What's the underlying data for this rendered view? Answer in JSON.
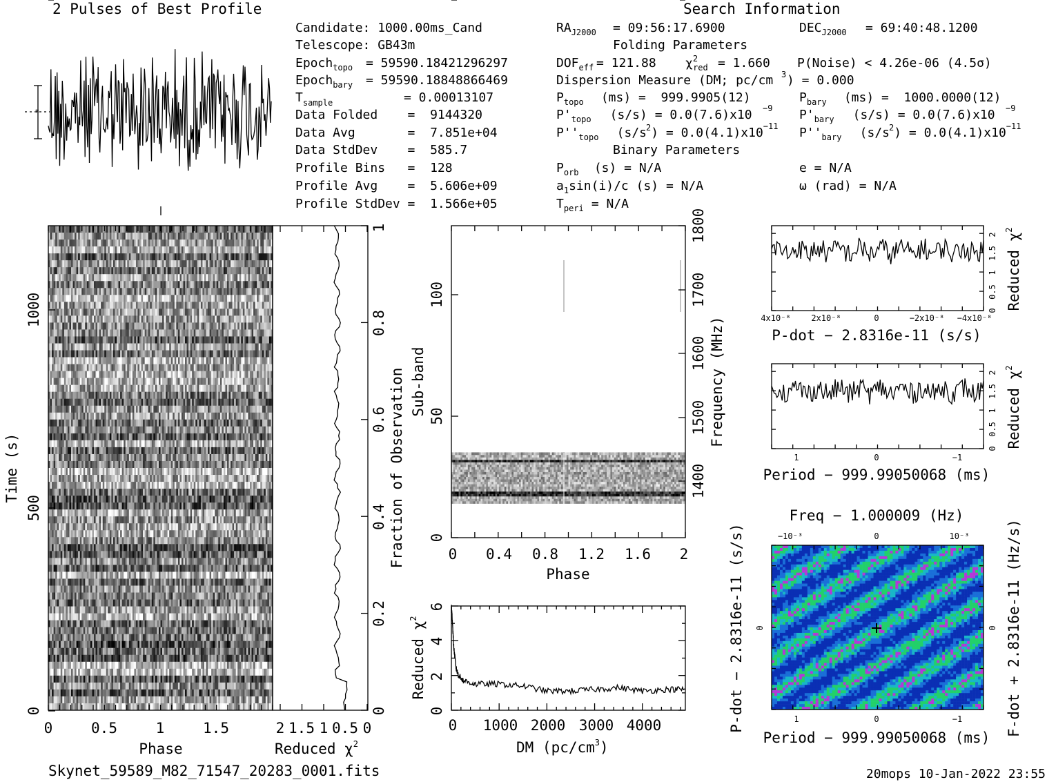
{
  "header": {
    "profile_title": "2 Pulses of Best Profile",
    "search_title": "Search Information",
    "folding_title": "Folding Parameters",
    "binary_title": "Binary Parameters",
    "filename": "Skynet_59589_M82_71547_20283_0001.fits",
    "footer": "20mops 10-Jan-2022 23:55"
  },
  "info": {
    "candidate": "Candidate:  1000.00ms_Cand",
    "telescope": "Telescope:  GB43m",
    "epoch_topo": "= 59590.18421296297",
    "epoch_bary": "= 59590.18848866469",
    "t_sample": "=  0.00013107",
    "data_folded": "Data Folded    =  9144320",
    "data_avg": "Data Avg       =  7.851e+04",
    "data_stddev": "Data StdDev    =  585.7",
    "profile_bins": "Profile Bins   =  128",
    "profile_avg": "Profile Avg    =  5.606e+09",
    "profile_stddev": "Profile StdDev =  1.566e+05"
  },
  "search": {
    "ra": "= 09:56:17.6900",
    "dec": "= 69:40:48.1200",
    "dof": "= 121.88",
    "chi2red": "= 1.660",
    "pnoise": "P(Noise) < 4.26e-06  (4.5σ)",
    "dm": "Dispersion Measure (DM; pc/cm",
    "dm_val": ") = 0.000",
    "ptopo": " (ms) =  999.9905(12)",
    "pbary": " (ms) =  1000.0000(12)",
    "pdtopo": "  (s/s) = 0.0(7.6)x10",
    "pdbary": "  (s/s) = 0.0(7.6)x10",
    "pddtopo": "  (s/s",
    "pddbary": "  (s/s",
    "porb": " (s) = N/A",
    "asini": "a",
    "asini_rest": "sin(i)/c (s) = N/A",
    "tperi": " = N/A",
    "ecc": "e = N/A",
    "omega": "ω (rad) = N/A"
  },
  "chart_data": [
    {
      "type": "line",
      "name": "pulse-profile",
      "title": "2 Pulses of Best Profile",
      "xlabel": "",
      "ylabel": "",
      "note": "noise-like profile, two pulses of 128 bins"
    },
    {
      "type": "heatmap",
      "name": "time-phase",
      "xlabel": "Phase",
      "ylabel": "Time (s)",
      "xlim": [
        0,
        2
      ],
      "ylim": [
        0,
        1150
      ],
      "xticks": [
        "0",
        "0.5",
        "1",
        "1.5",
        "2"
      ],
      "yticks": [
        "0",
        "500",
        "1000"
      ],
      "colormap": "grayscale"
    },
    {
      "type": "line",
      "name": "chi2-vs-time",
      "xlabel": "Reduced χ²",
      "y2label": "Fraction of Observation",
      "xticks": [
        "2",
        "1.5",
        "1",
        "0.5",
        "0"
      ],
      "y2ticks": [
        "0",
        "0.2",
        "0.4",
        "0.6",
        "0.8",
        "1"
      ]
    },
    {
      "type": "heatmap",
      "name": "subband-phase",
      "xlabel": "Phase",
      "ylabel": "Sub-band",
      "y2label": "Frequency (MHz)",
      "xlim": [
        0,
        2
      ],
      "ylim": [
        0,
        128
      ],
      "xticks": [
        "0",
        "0.4",
        "0.8",
        "1.2",
        "1.6",
        "2"
      ],
      "yticks": [
        "0",
        "50",
        "100"
      ],
      "y2ticks": [
        "1400",
        "1500",
        "1600",
        "1700",
        "1800"
      ],
      "active_subbands": [
        14,
        35
      ]
    },
    {
      "type": "line",
      "name": "dm-curve",
      "xlabel": "DM (pc/cm³)",
      "ylabel": "Reduced χ²",
      "xlim": [
        0,
        4900
      ],
      "ylim": [
        0,
        6
      ],
      "x": [
        0,
        20,
        50,
        100,
        150,
        250,
        500,
        1000,
        1500,
        2000,
        2500,
        3000,
        3500,
        4000,
        4500,
        4900
      ],
      "y": [
        6.0,
        5.2,
        3.6,
        2.4,
        2.0,
        1.7,
        1.5,
        1.5,
        1.4,
        1.1,
        1.1,
        1.2,
        1.3,
        1.1,
        1.2,
        1.2
      ],
      "xticks": [
        "0",
        "1000",
        "2000",
        "3000",
        "4000"
      ],
      "yticks": [
        "0",
        "2",
        "4",
        "6"
      ]
    },
    {
      "type": "line",
      "name": "pdot-curve",
      "xlabel": "P-dot − 2.8316e-11 (s/s)",
      "ylabel": "Reduced χ²",
      "ylim": [
        0,
        2.2
      ],
      "xticks": [
        "4x10⁻⁸",
        "2x10⁻⁸",
        "0",
        "−2x10⁻⁸",
        "−4x10⁻⁸"
      ],
      "yticks": [
        "0",
        "0.5",
        "1",
        "1.5",
        "2"
      ],
      "mean": 1.55
    },
    {
      "type": "line",
      "name": "period-curve",
      "xlabel": "Period − 999.99050068 (ms)",
      "ylabel": "Reduced χ²",
      "ylim": [
        0,
        2.2
      ],
      "xticks": [
        "1",
        "0",
        "−1"
      ],
      "yticks": [
        "0",
        "0.5",
        "1",
        "1.5",
        "2"
      ],
      "mean": 1.5
    },
    {
      "type": "heatmap",
      "name": "p-pdot-plane",
      "title": "Freq − 1.000009 (Hz)",
      "xlabel": "Period − 999.99050068 (ms)",
      "ylabel": "P-dot − 2.8316e-11 (s/s)",
      "y2label": "F-dot + 2.8316e-11 (Hz/s)",
      "xticks": [
        "1",
        "0",
        "−1"
      ],
      "x2ticks": [
        "−10⁻³",
        "0",
        "10⁻³"
      ],
      "colormap": [
        "#0a2fb4",
        "#1a6fd8",
        "#19b6c8",
        "#22d06a",
        "#b23ad8"
      ]
    }
  ]
}
